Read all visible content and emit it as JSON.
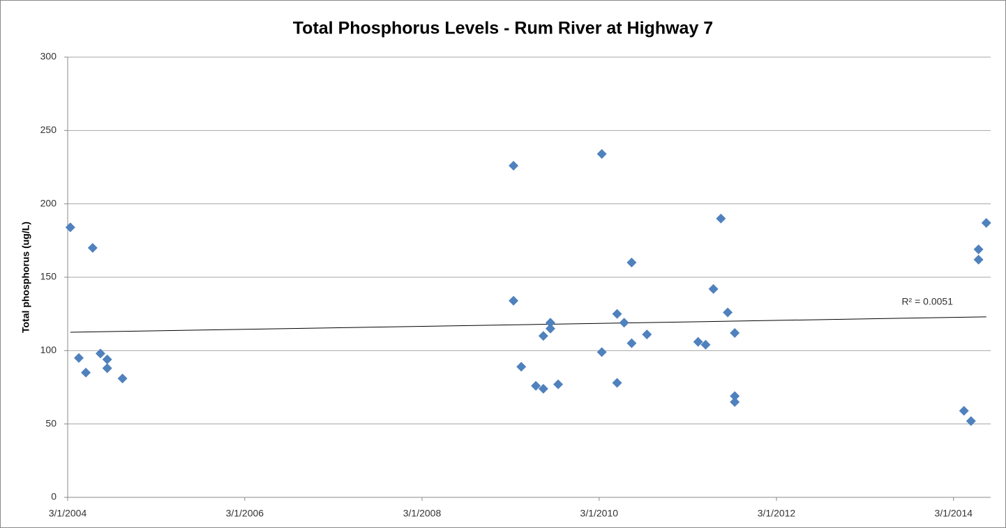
{
  "chart_data": {
    "type": "scatter",
    "title": "Total Phosphorus Levels - Rum River at Highway 7",
    "y_label": "Total phosphorus (ug/L)",
    "color": "#4f81bd",
    "x": [
      "2004-03-12",
      "2004-04-16",
      "2004-05-15",
      "2004-06-12",
      "2004-07-14",
      "2004-08-11",
      "2004-08-11",
      "2004-10-13",
      "2009-03-13",
      "2009-03-13",
      "2009-04-14",
      "2009-06-13",
      "2009-07-14",
      "2009-07-14",
      "2009-08-12",
      "2009-08-12",
      "2009-09-13",
      "2010-03-12",
      "2010-03-12",
      "2010-05-14",
      "2010-05-14",
      "2010-06-12",
      "2010-07-13",
      "2010-07-13",
      "2010-09-14",
      "2011-04-13",
      "2011-05-14",
      "2011-06-15",
      "2011-07-16",
      "2011-08-13",
      "2011-09-11",
      "2011-09-11",
      "2011-09-11",
      "2014-04-13",
      "2014-05-12",
      "2014-06-12",
      "2014-06-12",
      "2014-07-14"
    ],
    "values": [
      184,
      95,
      85,
      170,
      98,
      94,
      88,
      81,
      226,
      134,
      89,
      76,
      110,
      74,
      119,
      115,
      77,
      234,
      99,
      125,
      78,
      119,
      160,
      105,
      111,
      106,
      104,
      142,
      190,
      126,
      112,
      69,
      65,
      59,
      52,
      169,
      162,
      187
    ],
    "trendline": {
      "x": [
        "2004-03-12",
        "2014-07-14"
      ],
      "values": [
        112.5,
        123
      ],
      "label": "R² = 0.0051"
    },
    "xlim": [
      "2004-03-01",
      "2014-08-01"
    ],
    "xticks": [
      {
        "value": "2004-03-01",
        "label": "3/1/2004"
      },
      {
        "value": "2006-03-01",
        "label": "3/1/2006"
      },
      {
        "value": "2008-03-01",
        "label": "3/1/2008"
      },
      {
        "value": "2010-03-01",
        "label": "3/1/2010"
      },
      {
        "value": "2012-03-01",
        "label": "3/1/2012"
      },
      {
        "value": "2014-03-01",
        "label": "3/1/2014"
      }
    ],
    "ylim": [
      0,
      300
    ],
    "yticks": [
      0,
      50,
      100,
      150,
      200,
      250,
      300
    ],
    "grid": true
  }
}
